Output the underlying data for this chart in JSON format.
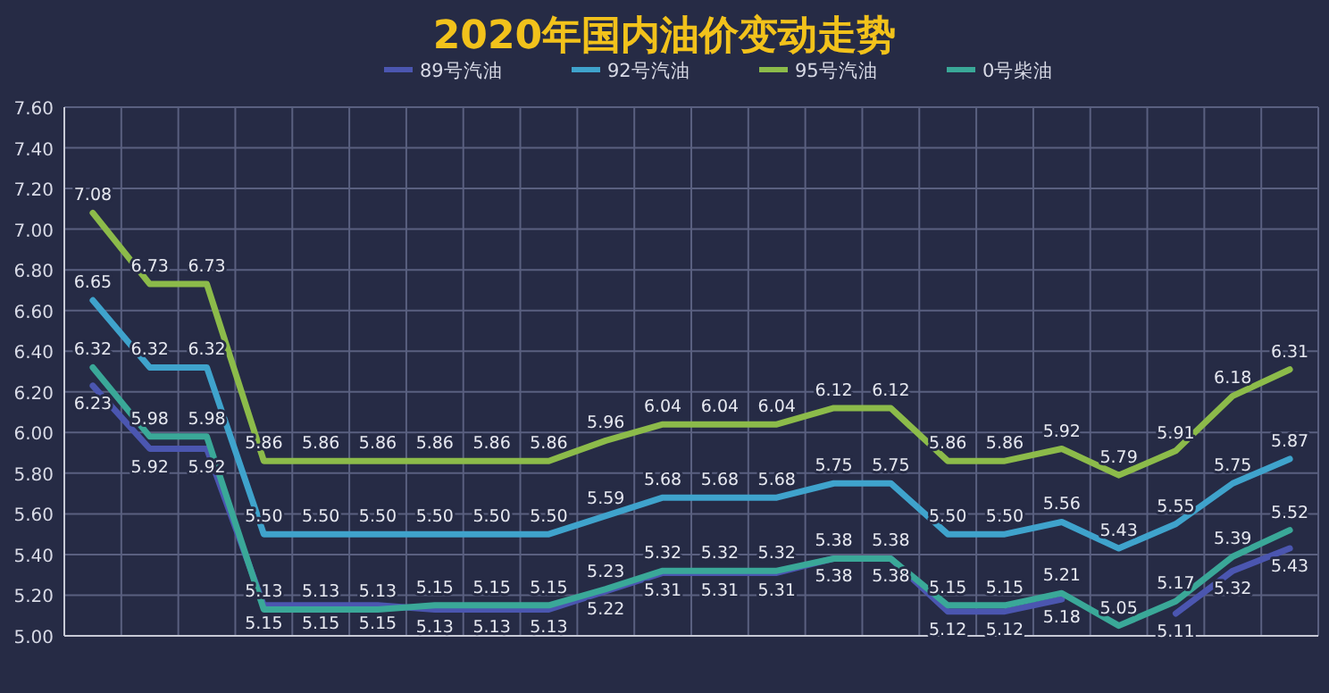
{
  "chart_data": {
    "type": "line",
    "title": "2020年国内油价变动走势",
    "categories": [
      null,
      null,
      null,
      null,
      null,
      null,
      null,
      null,
      null,
      null,
      null,
      null,
      null,
      null,
      null,
      null,
      null,
      null,
      null,
      null,
      null,
      null
    ],
    "series": [
      {
        "name": "89号汽油",
        "color": "#4b56b0",
        "values": [
          6.23,
          5.92,
          5.92,
          5.15,
          5.15,
          5.15,
          5.13,
          5.13,
          5.13,
          5.22,
          5.31,
          5.31,
          5.31,
          5.38,
          5.38,
          5.12,
          5.12,
          5.18,
          null,
          5.11,
          5.32,
          5.43
        ],
        "value_labels": [
          "6.23",
          "5.92",
          "5.92",
          "5.15",
          "5.15",
          "5.15",
          "5.13",
          "5.13",
          "5.13",
          "5.22",
          "5.31",
          "5.31",
          "5.31",
          "5.38",
          "5.38",
          "5.12",
          "5.12",
          "5.18",
          null,
          "5.11",
          "5.32",
          "5.43"
        ]
      },
      {
        "name": "92号汽油",
        "color": "#3fa3cc",
        "values": [
          6.65,
          6.32,
          6.32,
          5.5,
          5.5,
          5.5,
          5.5,
          5.5,
          5.5,
          5.59,
          5.68,
          5.68,
          5.68,
          5.75,
          5.75,
          5.5,
          5.5,
          5.56,
          5.43,
          5.55,
          5.75,
          5.87
        ],
        "value_labels": [
          "6.65",
          "6.32",
          "6.32",
          "5.50",
          "5.50",
          "5.50",
          "5.50",
          "5.50",
          "5.50",
          "5.59",
          "5.68",
          "5.68",
          "5.68",
          "5.75",
          "5.75",
          "5.50",
          "5.50",
          "5.56",
          "5.43",
          "5.55",
          "5.75",
          "5.87"
        ]
      },
      {
        "name": "95号汽油",
        "color": "#8cbb4a",
        "values": [
          7.08,
          6.73,
          6.73,
          5.86,
          5.86,
          5.86,
          5.86,
          5.86,
          5.86,
          5.96,
          6.04,
          6.04,
          6.04,
          6.12,
          6.12,
          5.86,
          5.86,
          5.92,
          5.79,
          5.91,
          6.18,
          6.31
        ],
        "value_labels": [
          "7.08",
          "6.73",
          "6.73",
          "5.86",
          "5.86",
          "5.86",
          "5.86",
          "5.86",
          "5.86",
          "5.96",
          "6.04",
          "6.04",
          "6.04",
          "6.12",
          "6.12",
          "5.86",
          "5.86",
          "5.92",
          "5.79",
          "5.91",
          "6.18",
          "6.31"
        ]
      },
      {
        "name": "0号柴油",
        "color": "#3aa898",
        "values": [
          6.32,
          5.98,
          5.98,
          5.13,
          5.13,
          5.13,
          5.15,
          5.15,
          5.15,
          5.23,
          5.32,
          5.32,
          5.32,
          5.38,
          5.38,
          5.15,
          5.15,
          5.21,
          5.05,
          5.17,
          5.39,
          5.52
        ],
        "value_labels": [
          "6.32",
          "5.98",
          "5.98",
          "5.13",
          "5.13",
          "5.13",
          "5.15",
          "5.15",
          "5.15",
          "5.23",
          "5.32",
          "5.32",
          "5.32",
          "5.38",
          "5.38",
          "5.15",
          "5.15",
          "5.21",
          "5.05",
          "5.17",
          "5.39",
          "5.52"
        ]
      }
    ],
    "ylim": [
      5.0,
      7.6
    ],
    "yticks": [
      {
        "value": 5.0,
        "label": "5.00"
      },
      {
        "value": 5.2,
        "label": "5.20"
      },
      {
        "value": 5.4,
        "label": "5.40"
      },
      {
        "value": 5.6,
        "label": "5.60"
      },
      {
        "value": 5.8,
        "label": "5.80"
      },
      {
        "value": 6.0,
        "label": "6.00"
      },
      {
        "value": 6.2,
        "label": "6.20"
      },
      {
        "value": 6.4,
        "label": "6.40"
      },
      {
        "value": 6.6,
        "label": "6.60"
      },
      {
        "value": 6.8,
        "label": "6.80"
      },
      {
        "value": 7.0,
        "label": "7.00"
      },
      {
        "value": 7.2,
        "label": "7.20"
      },
      {
        "value": 7.4,
        "label": "7.40"
      },
      {
        "value": 7.6,
        "label": "7.60"
      }
    ],
    "grid": true,
    "legend": "top",
    "tick_labels": "y",
    "marker": "none",
    "line_style": "solid"
  }
}
